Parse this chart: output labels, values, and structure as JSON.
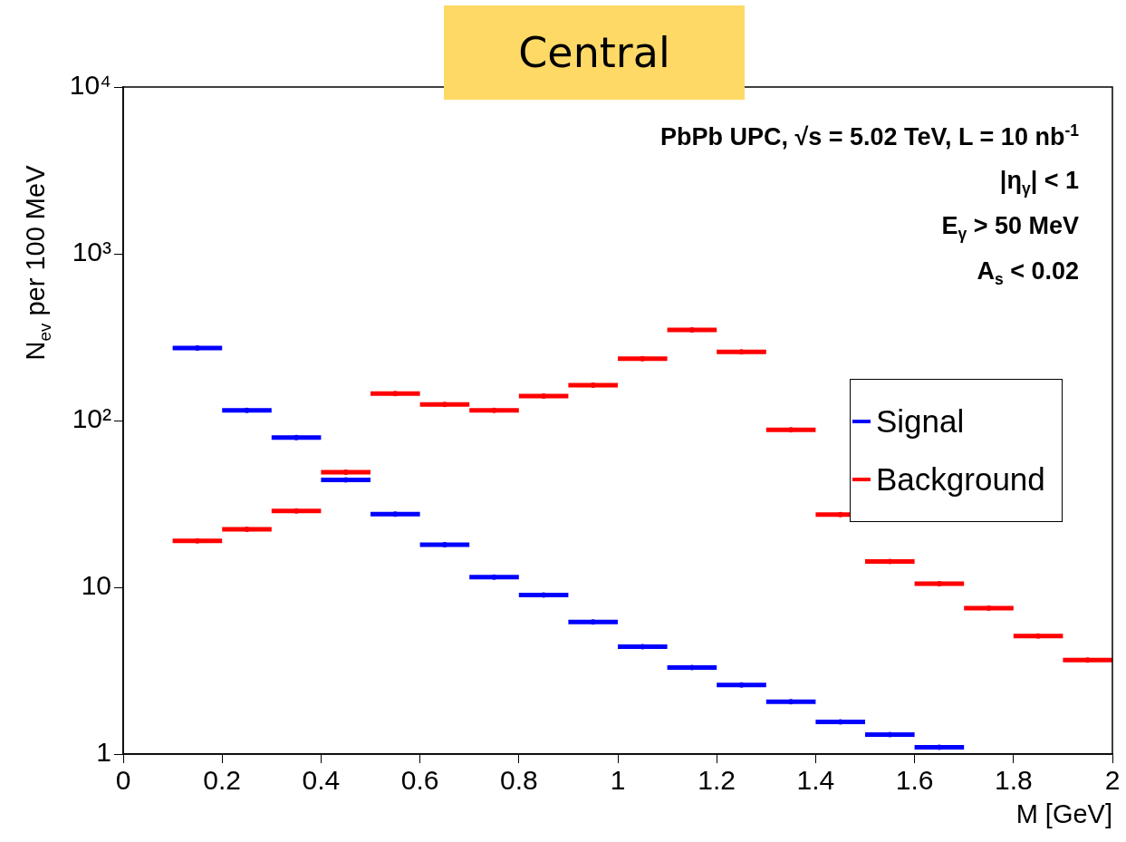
{
  "chart_data": {
    "type": "scatter",
    "title": "Central",
    "xlabel": "M [GeV]",
    "ylabel": "N$_{ev}$ per 100 MeV",
    "annotations": [
      "PbPb UPC,  √s = 5.02 TeV, L = 10 nb$^{-1}$",
      "|η$_{γ}$| < 1",
      "E$_{γ}$ > 50 MeV",
      "A$_{s}$ < 0.02"
    ],
    "x": [
      0.15,
      0.25,
      0.35,
      0.45,
      0.55,
      0.65,
      0.75,
      0.85,
      0.95,
      1.05,
      1.15,
      1.25,
      1.35,
      1.45,
      1.55,
      1.65,
      1.75,
      1.85,
      1.95
    ],
    "series": [
      {
        "name": "Signal",
        "color": "#0000ff",
        "values": [
          272,
          115,
          79,
          44,
          27.5,
          18,
          11.5,
          9,
          6.2,
          4.4,
          3.3,
          2.6,
          2.06,
          1.56,
          1.31,
          1.1,
          null,
          null,
          null
        ],
        "xerrors": [
          0.05,
          0.05,
          0.05,
          0.05,
          0.05,
          0.05,
          0.05,
          0.05,
          0.05,
          0.05,
          0.05,
          0.05,
          0.05,
          0.05,
          0.05,
          0.05,
          null,
          null,
          null
        ]
      },
      {
        "name": "Background",
        "color": "#ff0000",
        "values": [
          19,
          22.3,
          28.7,
          49,
          145,
          125,
          115,
          140,
          163,
          235,
          350,
          258,
          88,
          27.3,
          14.3,
          10.5,
          7.5,
          5.1,
          3.66
        ],
        "xerrors": [
          0.05,
          0.05,
          0.05,
          0.05,
          0.05,
          0.05,
          0.05,
          0.05,
          0.05,
          0.05,
          0.05,
          0.05,
          0.05,
          0.05,
          0.05,
          0.05,
          0.05,
          0.05,
          0.05
        ]
      }
    ],
    "xlim": [
      0,
      2
    ],
    "xticks": [
      0,
      0.2,
      0.4,
      0.6,
      0.8,
      1,
      1.2,
      1.4,
      1.6,
      1.8,
      2
    ],
    "ylim": [
      1,
      10000
    ],
    "yticks": [
      1,
      10,
      {
        "value": 100,
        "label": "10²"
      },
      {
        "value": 1000,
        "label": "10³"
      },
      {
        "value": 10000,
        "label": "10⁴"
      }
    ],
    "log": true,
    "legend": "right"
  }
}
